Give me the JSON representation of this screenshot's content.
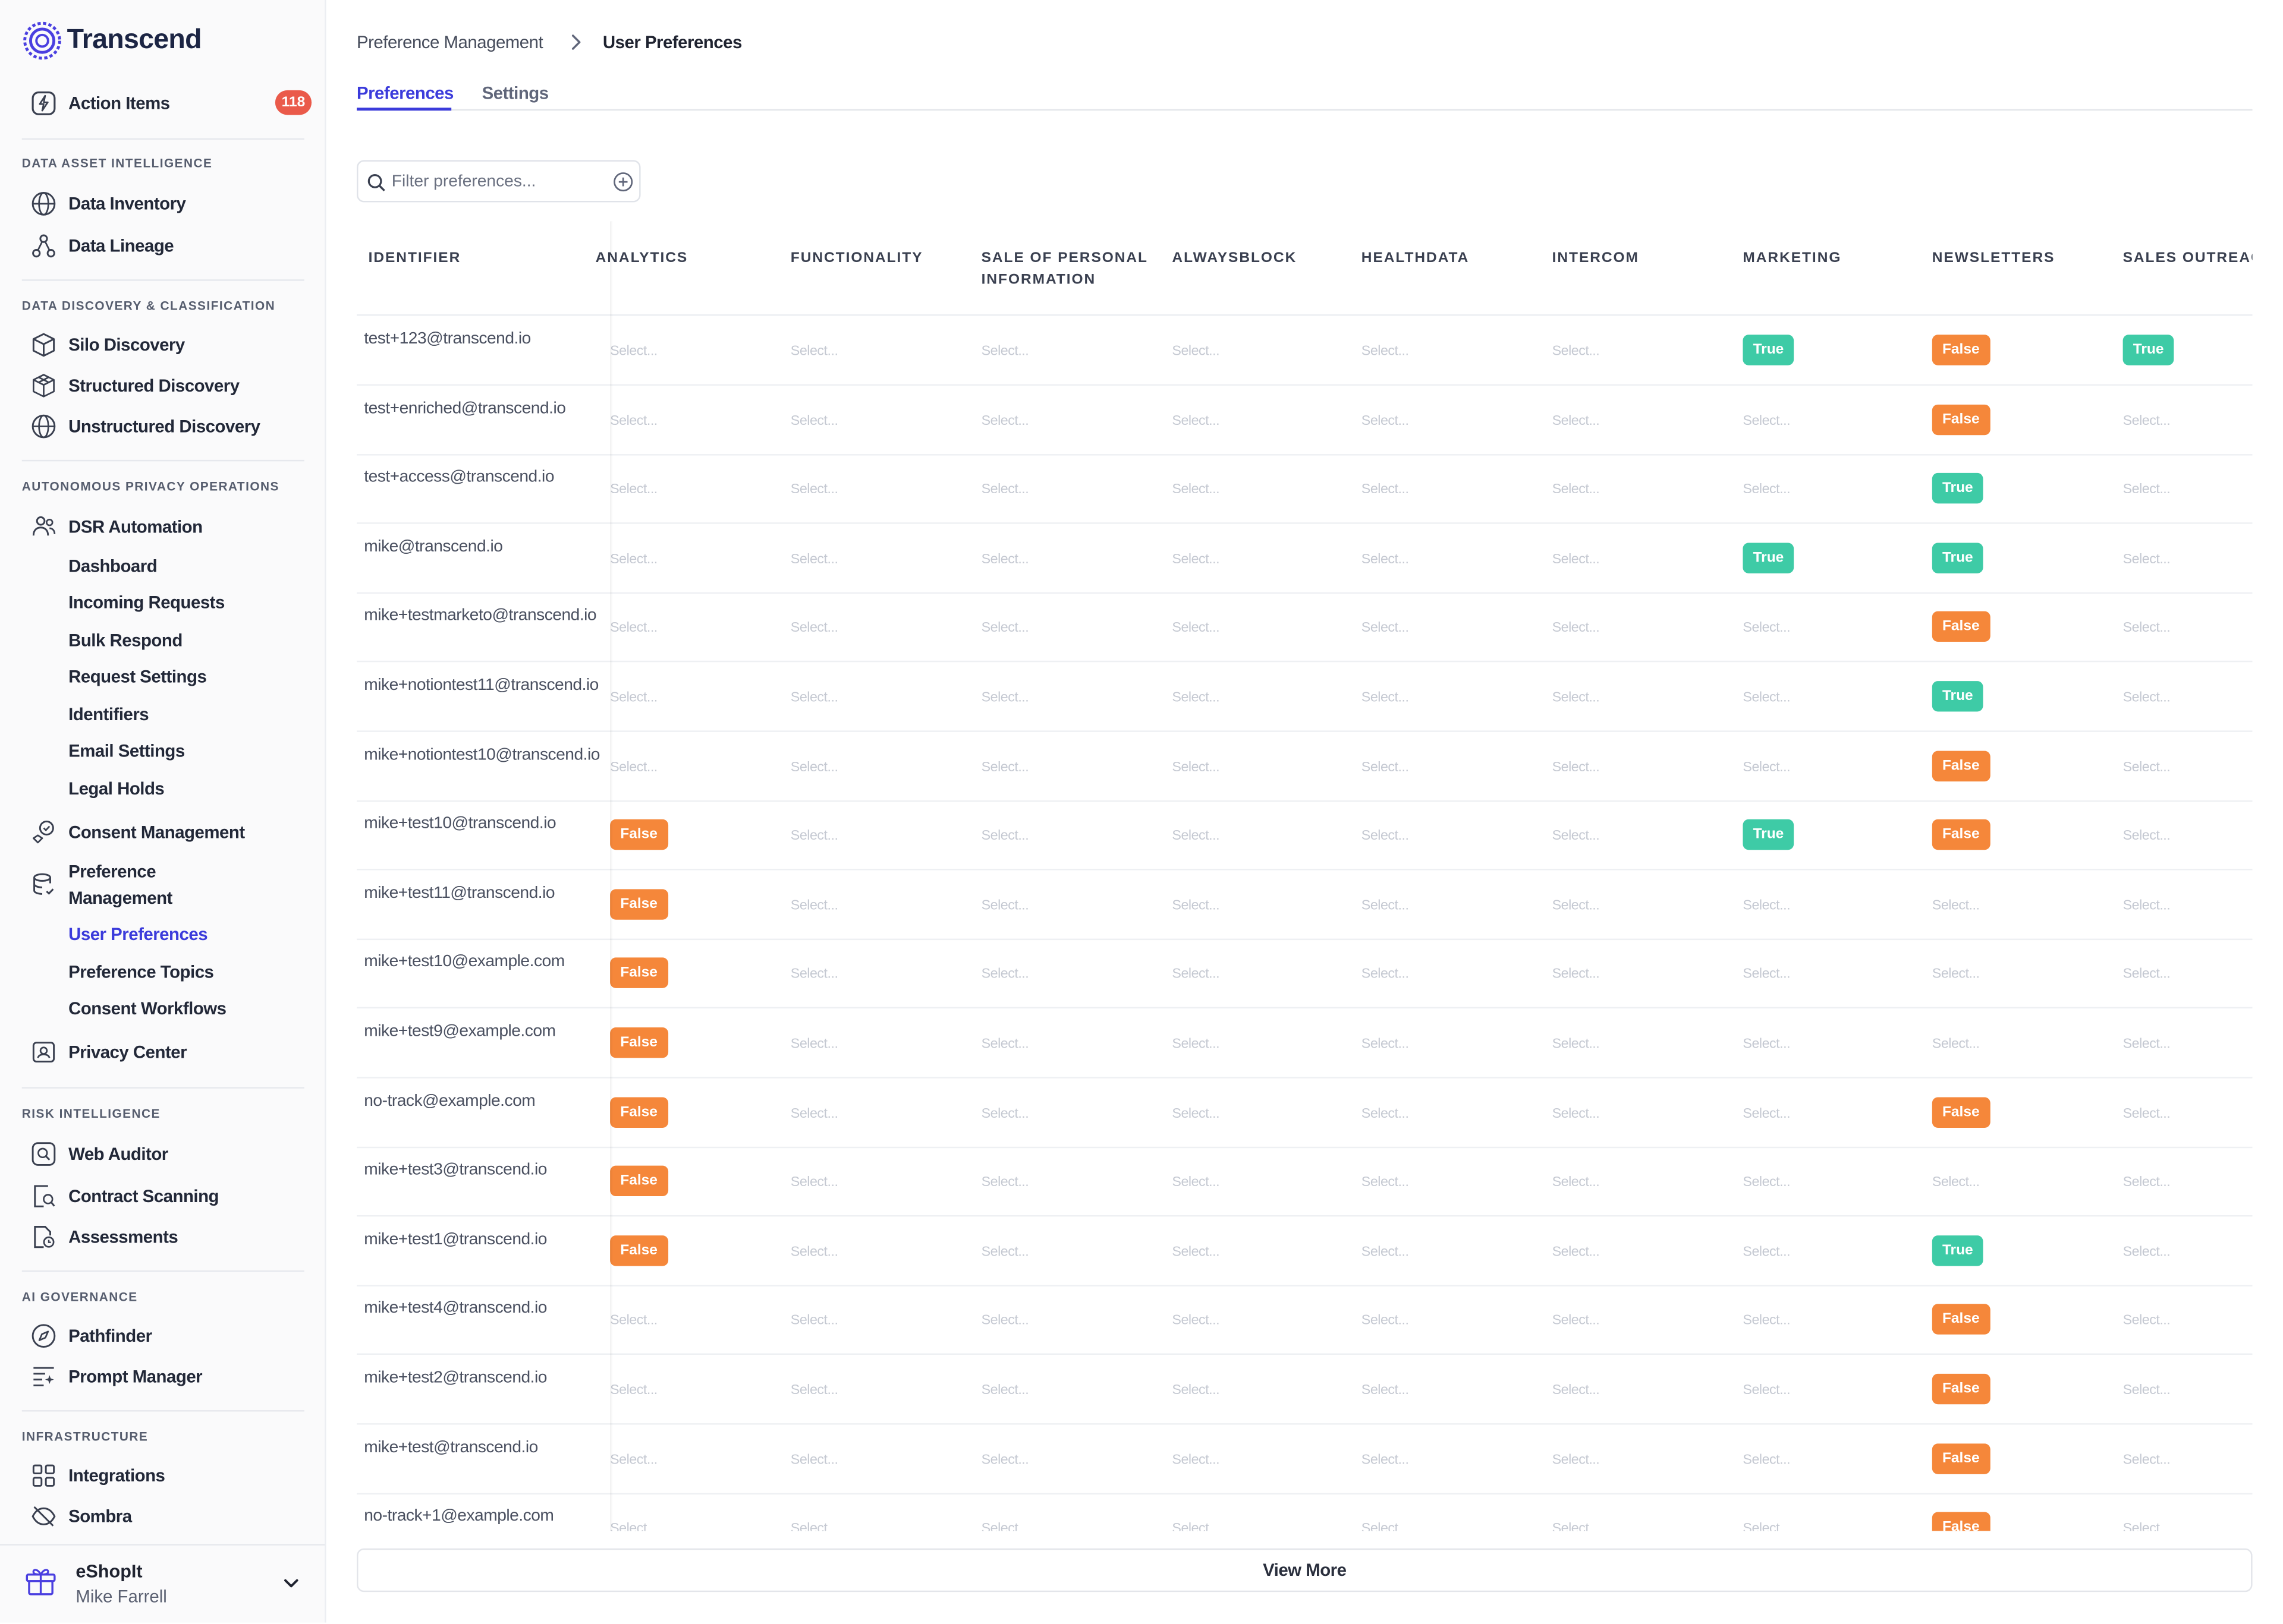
{
  "brand": {
    "name": "Transcend",
    "accent": "#3b3bdb"
  },
  "sidebar": {
    "action_items": {
      "label": "Action Items",
      "count": "118",
      "icon": "bolt-icon"
    },
    "sections": [
      {
        "title": "DATA ASSET INTELLIGENCE",
        "items": [
          {
            "label": "Data Inventory",
            "icon": "globe-icon"
          },
          {
            "label": "Data Lineage",
            "icon": "lineage-icon"
          }
        ]
      },
      {
        "title": "DATA DISCOVERY & CLASSIFICATION",
        "items": [
          {
            "label": "Silo Discovery",
            "icon": "cube-icon"
          },
          {
            "label": "Structured Discovery",
            "icon": "cubes-icon"
          },
          {
            "label": "Unstructured Discovery",
            "icon": "globe-icon"
          }
        ]
      },
      {
        "title": "AUTONOMOUS PRIVACY OPERATIONS",
        "items": [
          {
            "label": "DSR Automation",
            "icon": "users-icon",
            "children": [
              "Dashboard",
              "Incoming Requests",
              "Bulk Respond",
              "Request Settings",
              "Identifiers",
              "Email Settings",
              "Legal Holds"
            ]
          },
          {
            "label": "Consent Management",
            "icon": "consent-icon"
          },
          {
            "label": "Preference Management",
            "icon": "database-check-icon",
            "children": [
              "User Preferences",
              "Preference Topics",
              "Consent Workflows"
            ]
          },
          {
            "label": "Privacy Center",
            "icon": "id-card-icon"
          }
        ]
      },
      {
        "title": "RISK INTELLIGENCE",
        "items": [
          {
            "label": "Web Auditor",
            "icon": "scan-icon"
          },
          {
            "label": "Contract Scanning",
            "icon": "doc-search-icon"
          },
          {
            "label": "Assessments",
            "icon": "doc-clock-icon"
          }
        ]
      },
      {
        "title": "AI GOVERNANCE",
        "items": [
          {
            "label": "Pathfinder",
            "icon": "compass-icon"
          },
          {
            "label": "Prompt Manager",
            "icon": "prompt-icon"
          }
        ]
      },
      {
        "title": "INFRASTRUCTURE",
        "items": [
          {
            "label": "Integrations",
            "icon": "grid-icon"
          },
          {
            "label": "Sombra",
            "icon": "eye-off-icon"
          }
        ]
      }
    ],
    "account": {
      "org": "eShopIt",
      "user": "Mike Farrell"
    }
  },
  "breadcrumb": {
    "parent": "Preference Management",
    "current": "User Preferences"
  },
  "tabs": [
    {
      "label": "Preferences",
      "active": true
    },
    {
      "label": "Settings",
      "active": false
    }
  ],
  "filter": {
    "placeholder": "Filter preferences..."
  },
  "table": {
    "columns": [
      "IDENTIFIER",
      "ANALYTICS",
      "FUNCTIONALITY",
      "SALE OF PERSONAL INFORMATION",
      "ALWAYSBLOCK",
      "HEALTHDATA",
      "INTERCOM",
      "MARKETING",
      "NEWSLETTERS",
      "SALES OUTREACH"
    ],
    "placeholder": "Select...",
    "rows": [
      {
        "id": "test+123@transcend.io",
        "cells": [
          "",
          "",
          "",
          "",
          "",
          "",
          "True",
          "False",
          "True"
        ]
      },
      {
        "id": "test+enriched@transcend.io",
        "cells": [
          "",
          "",
          "",
          "",
          "",
          "",
          "",
          "False",
          ""
        ]
      },
      {
        "id": "test+access@transcend.io",
        "cells": [
          "",
          "",
          "",
          "",
          "",
          "",
          "",
          "True",
          ""
        ]
      },
      {
        "id": "mike@transcend.io",
        "cells": [
          "",
          "",
          "",
          "",
          "",
          "",
          "True",
          "True",
          ""
        ]
      },
      {
        "id": "mike+testmarketo@transcend.io",
        "cells": [
          "",
          "",
          "",
          "",
          "",
          "",
          "",
          "False",
          ""
        ]
      },
      {
        "id": "mike+notiontest11@transcend.io",
        "cells": [
          "",
          "",
          "",
          "",
          "",
          "",
          "",
          "True",
          ""
        ]
      },
      {
        "id": "mike+notiontest10@transcend.io",
        "cells": [
          "",
          "",
          "",
          "",
          "",
          "",
          "",
          "False",
          ""
        ]
      },
      {
        "id": "mike+test10@transcend.io",
        "cells": [
          "False",
          "",
          "",
          "",
          "",
          "",
          "True",
          "False",
          ""
        ]
      },
      {
        "id": "mike+test11@transcend.io",
        "cells": [
          "False",
          "",
          "",
          "",
          "",
          "",
          "",
          "",
          ""
        ]
      },
      {
        "id": "mike+test10@example.com",
        "cells": [
          "False",
          "",
          "",
          "",
          "",
          "",
          "",
          "",
          ""
        ]
      },
      {
        "id": "mike+test9@example.com",
        "cells": [
          "False",
          "",
          "",
          "",
          "",
          "",
          "",
          "",
          ""
        ]
      },
      {
        "id": "no-track@example.com",
        "cells": [
          "False",
          "",
          "",
          "",
          "",
          "",
          "",
          "False",
          ""
        ]
      },
      {
        "id": "mike+test3@transcend.io",
        "cells": [
          "False",
          "",
          "",
          "",
          "",
          "",
          "",
          "",
          ""
        ]
      },
      {
        "id": "mike+test1@transcend.io",
        "cells": [
          "False",
          "",
          "",
          "",
          "",
          "",
          "",
          "True",
          ""
        ]
      },
      {
        "id": "mike+test4@transcend.io",
        "cells": [
          "",
          "",
          "",
          "",
          "",
          "",
          "",
          "False",
          ""
        ]
      },
      {
        "id": "mike+test2@transcend.io",
        "cells": [
          "",
          "",
          "",
          "",
          "",
          "",
          "",
          "False",
          ""
        ]
      },
      {
        "id": "mike+test@transcend.io",
        "cells": [
          "",
          "",
          "",
          "",
          "",
          "",
          "",
          "False",
          ""
        ]
      },
      {
        "id": "no-track+1@example.com",
        "cells": [
          "",
          "",
          "",
          "",
          "",
          "",
          "",
          "False",
          ""
        ]
      }
    ]
  },
  "view_more": "View More",
  "colors": {
    "true_pill": "#3ecba6",
    "false_pill": "#f5873a",
    "badge": "#ea5a4a"
  }
}
